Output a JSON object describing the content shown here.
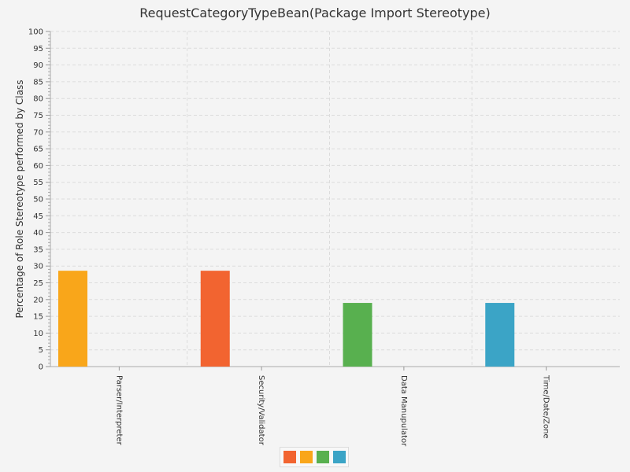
{
  "chart_data": {
    "type": "bar",
    "title": "RequestCategoryTypeBean(Package Import Stereotype)",
    "xlabel": "",
    "ylabel": "Percentage of Role Stereotype performed by Class",
    "ylim": [
      0,
      100
    ],
    "ytick_step": 5,
    "grid": true,
    "legend_position": "bottom-center",
    "categories": [
      "Parser/Interpreter",
      "Security/Validator",
      "Data Manupulator",
      "Time/Date/Zone"
    ],
    "values": [
      28.6,
      28.6,
      19.0,
      19.0
    ],
    "bar_colors": [
      "#f9a61a",
      "#f26430",
      "#58b04f",
      "#3ba4c6"
    ],
    "legend_colors": [
      "#f26430",
      "#f9a61a",
      "#58b04f",
      "#3ba4c6"
    ]
  }
}
